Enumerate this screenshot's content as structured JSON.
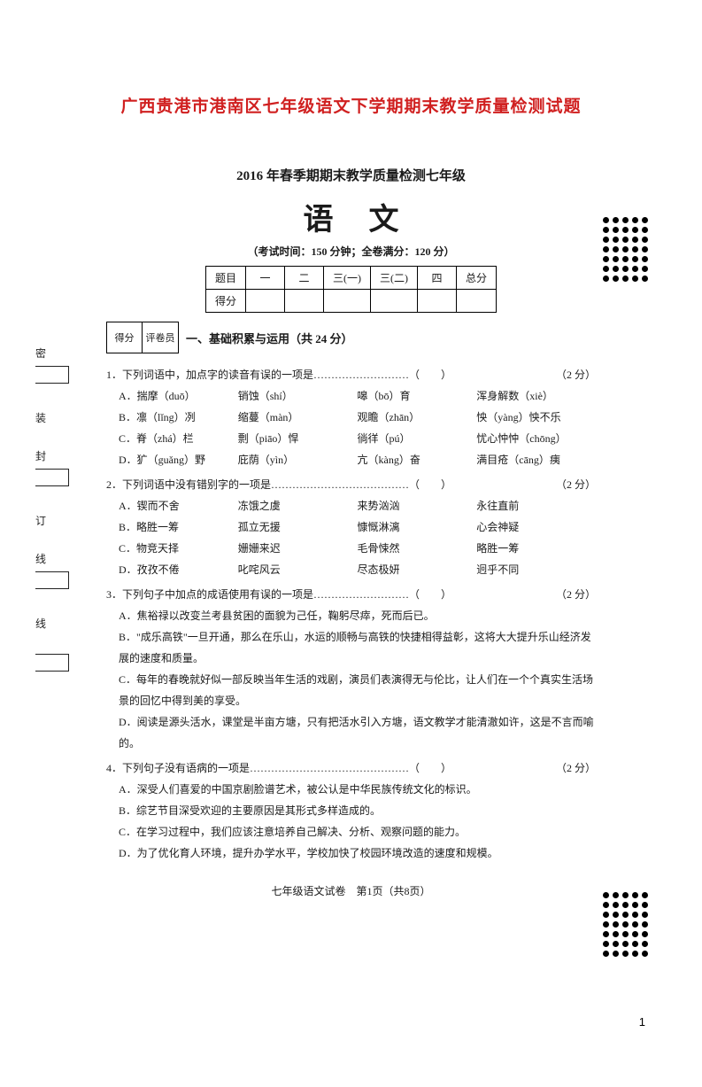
{
  "doc_title": "广西贵港市港南区七年级语文下学期期末教学质量检测试题",
  "sub_title": "2016 年春季期期末教学质量检测七年级",
  "subject": "语文",
  "exam_info": "（考试时间：150 分钟；全卷满分：120 分）",
  "score_table": {
    "row1": [
      "题目",
      "一",
      "二",
      "三(一)",
      "三(二)",
      "四",
      "总分"
    ],
    "row2_label": "得分"
  },
  "grade_box": {
    "c1": "得分",
    "c2": "评卷员"
  },
  "section1_title": "一、基础积累与运用（共 24 分）",
  "q1": {
    "stem": "1．下列词语中，加点字的读音有误的一项是",
    "dots": "………………………（　　）",
    "points": "（2 分）",
    "A": [
      "A．揣摩（duō）",
      "销蚀（shí）",
      "嗥（bō）育",
      "浑身解数（xiè）"
    ],
    "B": [
      "B．凛（lǐng）冽",
      "缩蔓（màn）",
      "观瞻（zhān）",
      "怏（yàng）怏不乐"
    ],
    "C": [
      "C．脊（zhá）栏",
      "剽（piāo）悍",
      "徜徉（pú）",
      "忧心忡忡（chōng）"
    ],
    "D": [
      "D．犷（guǎng）野",
      "庇荫（yìn）",
      "亢（kàng）奋",
      "满目疮（cāng）痍"
    ]
  },
  "q2": {
    "stem": "2．下列词语中没有错别字的一项是",
    "dots": "…………………………………（　　）",
    "points": "（2 分）",
    "A": [
      "A．锲而不舍",
      "冻饿之虞",
      "来势汹汹",
      "永往直前"
    ],
    "B": [
      "B．略胜一筹",
      "孤立无援",
      "慷慨淋漓",
      "心会神疑"
    ],
    "C": [
      "C．物竞天择",
      "姗姗来迟",
      "毛骨悚然",
      "略胜一筹"
    ],
    "D": [
      "D．孜孜不倦",
      "叱咤风云",
      "尽态极妍",
      "迥乎不同"
    ]
  },
  "q3": {
    "stem": "3．下列句子中加点的成语使用有误的一项是",
    "dots": "………………………（　　）",
    "points": "（2 分）",
    "A": "A．焦裕禄以改变兰考县贫困的面貌为己任，鞠躬尽瘁，死而后已。",
    "B": "B．\"成乐高铁\"一旦开通，那么在乐山，水运的顺畅与高铁的快捷相得益彰，这将大大提升乐山经济发展的速度和质量。",
    "C": "C．每年的春晚就好似一部反映当年生活的戏剧，演员们表演得无与伦比，让人们在一个个真实生活场景的回忆中得到美的享受。",
    "D": "D．阅读是源头活水，课堂是半亩方塘，只有把活水引入方塘，语文教学才能清澈如许，这是不言而喻的。"
  },
  "q4": {
    "stem": "4．下列句子没有语病的一项是",
    "dots": "………………………………………（　　）",
    "points": "（2 分）",
    "A": "A．深受人们喜爱的中国京剧脸谱艺术，被公认是中华民族传统文化的标识。",
    "B": "B．综艺节目深受欢迎的主要原因是其形式多样造成的。",
    "C": "C．在学习过程中，我们应该注意培养自己解决、分析、观察问题的能力。",
    "D": "D．为了优化育人环境，提升办学水平，学校加快了校园环境改造的速度和规模。"
  },
  "footer": "七年级语文试卷　第1页（共8页）",
  "page_number": "1",
  "left_labels": {
    "l1": "密",
    "l2": "封",
    "l3": "线",
    "s1": "装",
    "s2": "订",
    "s3": "线"
  },
  "colors": {
    "title": "#d02020",
    "text": "#1a1a1a",
    "bg": "#ffffff",
    "border": "#000000"
  }
}
